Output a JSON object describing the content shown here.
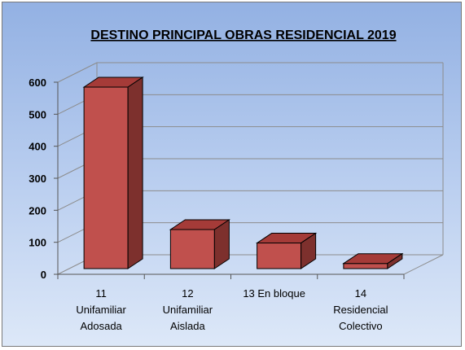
{
  "chart_data": {
    "type": "bar",
    "title": "DESTINO PRINCIPAL OBRAS RESIDENCIAL 2019",
    "categories": [
      [
        "11",
        "Unifamiliar",
        "Adosada"
      ],
      [
        "12",
        "Unifamiliar",
        "Aislada"
      ],
      [
        "13 En bloque"
      ],
      [
        "14",
        "Residencial",
        "Colectivo"
      ]
    ],
    "values": [
      567,
      122,
      80,
      16
    ],
    "ylim": [
      0,
      600
    ],
    "yticks": [
      "0",
      "100",
      "200",
      "300",
      "400",
      "500",
      "600"
    ],
    "grid": true,
    "legend": "none",
    "colors": {
      "bar_front": "#c0504d",
      "bar_top": "#a53b38",
      "bar_side": "#7d302d",
      "grid": "#8c8c8c"
    }
  }
}
